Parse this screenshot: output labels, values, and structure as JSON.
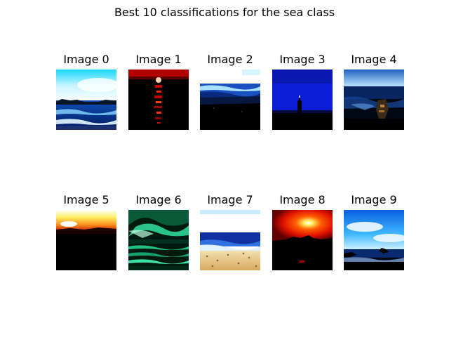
{
  "figure": {
    "title": "Best 10 classifications for the sea class"
  },
  "images": [
    {
      "label": "Image 0",
      "scene": "daytime-sea-with-distant-headland"
    },
    {
      "label": "Image 1",
      "scene": "sunset-sun-reflection-on-dark-water"
    },
    {
      "label": "Image 2",
      "scene": "waves-on-shore-with-white-sky"
    },
    {
      "label": "Image 3",
      "scene": "lighthouse-silhouette-on-blue-sea"
    },
    {
      "label": "Image 4",
      "scene": "dark-sea-with-rocks"
    },
    {
      "label": "Image 5",
      "scene": "yellow-sunset-over-dark-land"
    },
    {
      "label": "Image 6",
      "scene": "green-tinted-stormy-sea"
    },
    {
      "label": "Image 7",
      "scene": "sandy-beach-with-blue-sea"
    },
    {
      "label": "Image 8",
      "scene": "red-sunset-with-dark-silhouette"
    },
    {
      "label": "Image 9",
      "scene": "bright-sky-over-sea-with-rocks"
    }
  ]
}
